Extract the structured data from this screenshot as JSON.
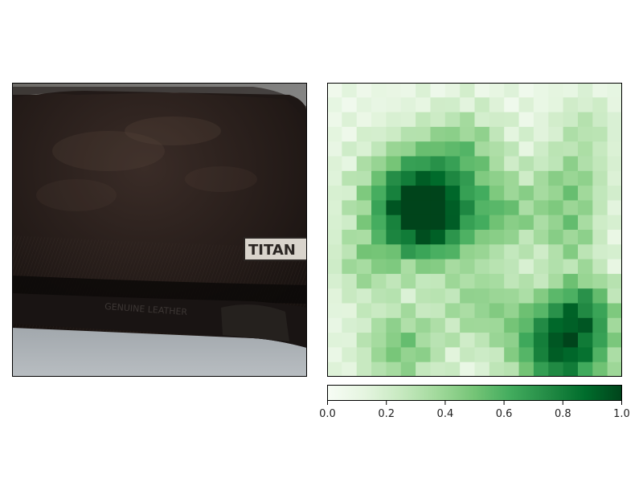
{
  "photo": {
    "subject": "wallet-photo",
    "brand_label": "TITAN",
    "embossed_text": "GENUINE LEATHER"
  },
  "chart_data": {
    "type": "heatmap",
    "colormap": "Greens",
    "colorbar": {
      "range": [
        0.0,
        1.0
      ],
      "ticks": [
        "0.0",
        "0.2",
        "0.4",
        "0.6",
        "0.8",
        "1.0"
      ]
    },
    "grid_rows": 20,
    "grid_cols": 20,
    "hotspots": [
      {
        "r": 7.5,
        "c": 5.5,
        "s": 2.6,
        "a": 0.75
      },
      {
        "r": 9.0,
        "c": 6.5,
        "s": 2.0,
        "a": 0.45
      },
      {
        "r": 8.5,
        "c": 11.5,
        "s": 1.8,
        "a": 0.35
      },
      {
        "r": 6.5,
        "c": 16.0,
        "s": 1.8,
        "a": 0.35
      },
      {
        "r": 10.0,
        "c": 16.0,
        "s": 1.4,
        "a": 0.3
      },
      {
        "r": 4.0,
        "c": 9.0,
        "s": 2.0,
        "a": 0.3
      },
      {
        "r": 17.5,
        "c": 15.5,
        "s": 2.4,
        "a": 0.85
      },
      {
        "r": 17.5,
        "c": 4.5,
        "s": 2.0,
        "a": 0.4
      },
      {
        "r": 14.5,
        "c": 10.0,
        "s": 2.0,
        "a": 0.3
      },
      {
        "r": 14.5,
        "c": 17.0,
        "s": 1.6,
        "a": 0.35
      },
      {
        "r": 12.0,
        "c": 2.0,
        "s": 1.6,
        "a": 0.25
      },
      {
        "r": 2.5,
        "c": 17.0,
        "s": 1.5,
        "a": 0.2
      }
    ]
  }
}
